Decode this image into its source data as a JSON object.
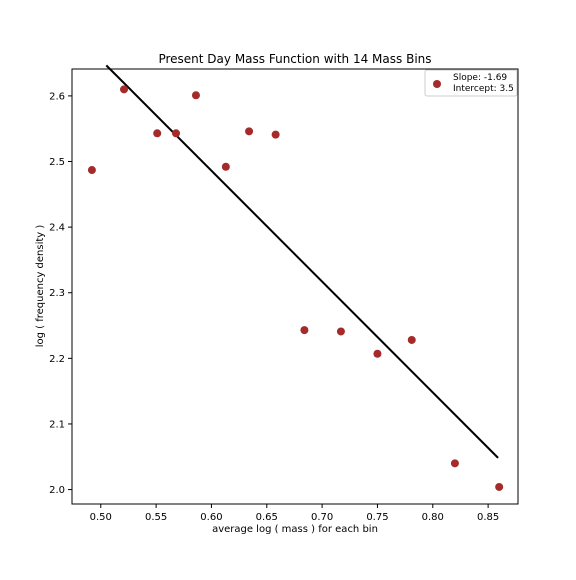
{
  "chart_data": {
    "type": "scatter",
    "title": "Present Day Mass Function with 14 Mass Bins",
    "xlabel": "average log ( mass ) for each bin",
    "ylabel": "log ( frequency density )",
    "xlim": [
      0.474,
      0.877
    ],
    "ylim": [
      1.978,
      2.641
    ],
    "xticks": [
      0.5,
      0.55,
      0.6,
      0.65,
      0.7,
      0.75,
      0.8,
      0.85
    ],
    "xtick_labels": [
      "0.50",
      "0.55",
      "0.60",
      "0.65",
      "0.70",
      "0.75",
      "0.80",
      "0.85"
    ],
    "yticks": [
      2.0,
      2.1,
      2.2,
      2.3,
      2.4,
      2.5,
      2.6
    ],
    "ytick_labels": [
      "2.0",
      "2.1",
      "2.2",
      "2.3",
      "2.4",
      "2.5",
      "2.6"
    ],
    "grid": false,
    "legend_position": "top-right",
    "series": [
      {
        "kind": "scatter",
        "color": "#a52a2a",
        "points": [
          {
            "x": 0.492,
            "y": 2.487
          },
          {
            "x": 0.521,
            "y": 2.61
          },
          {
            "x": 0.551,
            "y": 2.543
          },
          {
            "x": 0.568,
            "y": 2.543
          },
          {
            "x": 0.586,
            "y": 2.601
          },
          {
            "x": 0.613,
            "y": 2.492
          },
          {
            "x": 0.634,
            "y": 2.546
          },
          {
            "x": 0.658,
            "y": 2.541
          },
          {
            "x": 0.684,
            "y": 2.243
          },
          {
            "x": 0.717,
            "y": 2.241
          },
          {
            "x": 0.75,
            "y": 2.207
          },
          {
            "x": 0.781,
            "y": 2.228
          },
          {
            "x": 0.82,
            "y": 2.04
          },
          {
            "x": 0.86,
            "y": 2.004
          }
        ]
      },
      {
        "kind": "line",
        "color": "#000000",
        "slope": -1.69,
        "intercept": 3.5,
        "x_range": [
          0.505,
          0.859
        ]
      }
    ],
    "legend": {
      "slope_text": "Slope: -1.69",
      "intercept_text": "Intercept: 3.5"
    }
  }
}
